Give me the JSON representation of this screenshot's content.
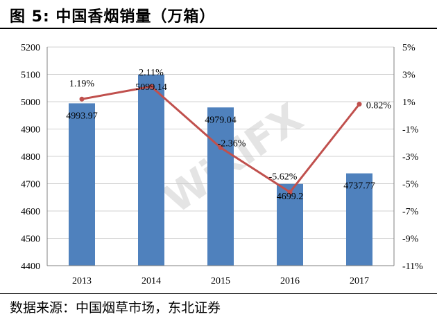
{
  "title": "图 5: 中国香烟销量（万箱）",
  "source": "数据来源：中国烟草市场，东北证券",
  "watermark_text": "WikiFX",
  "chart_data": {
    "type": "bar",
    "categories": [
      "2013",
      "2014",
      "2015",
      "2016",
      "2017"
    ],
    "series": [
      {
        "values": [
          4993.97,
          5099.14,
          4979.04,
          4699.2,
          4737.77
        ],
        "color": "#4f81bd",
        "axis": "left"
      },
      {
        "values": [
          1.19,
          2.11,
          -2.36,
          -5.62,
          0.82
        ],
        "color": "#c0504d",
        "axis": "right",
        "type": "line",
        "unit": "%"
      }
    ],
    "bar_labels": [
      "4993.97",
      "5099.14",
      "4979.04",
      "4699.2",
      "4737.77"
    ],
    "line_labels": [
      "1.19%",
      "2.11%",
      "-2.36%",
      "-5.62%",
      "0.82%"
    ],
    "ylim": [
      4400,
      5200
    ],
    "ylim_right": [
      -11,
      5
    ],
    "left_ticks": [
      "4400",
      "4500",
      "4600",
      "4700",
      "4800",
      "4900",
      "5000",
      "5100",
      "5200"
    ],
    "right_ticks": [
      "-11%",
      "-9%",
      "-7%",
      "-5%",
      "-3%",
      "-1%",
      "1%",
      "3%",
      "5%"
    ],
    "grid": true
  }
}
